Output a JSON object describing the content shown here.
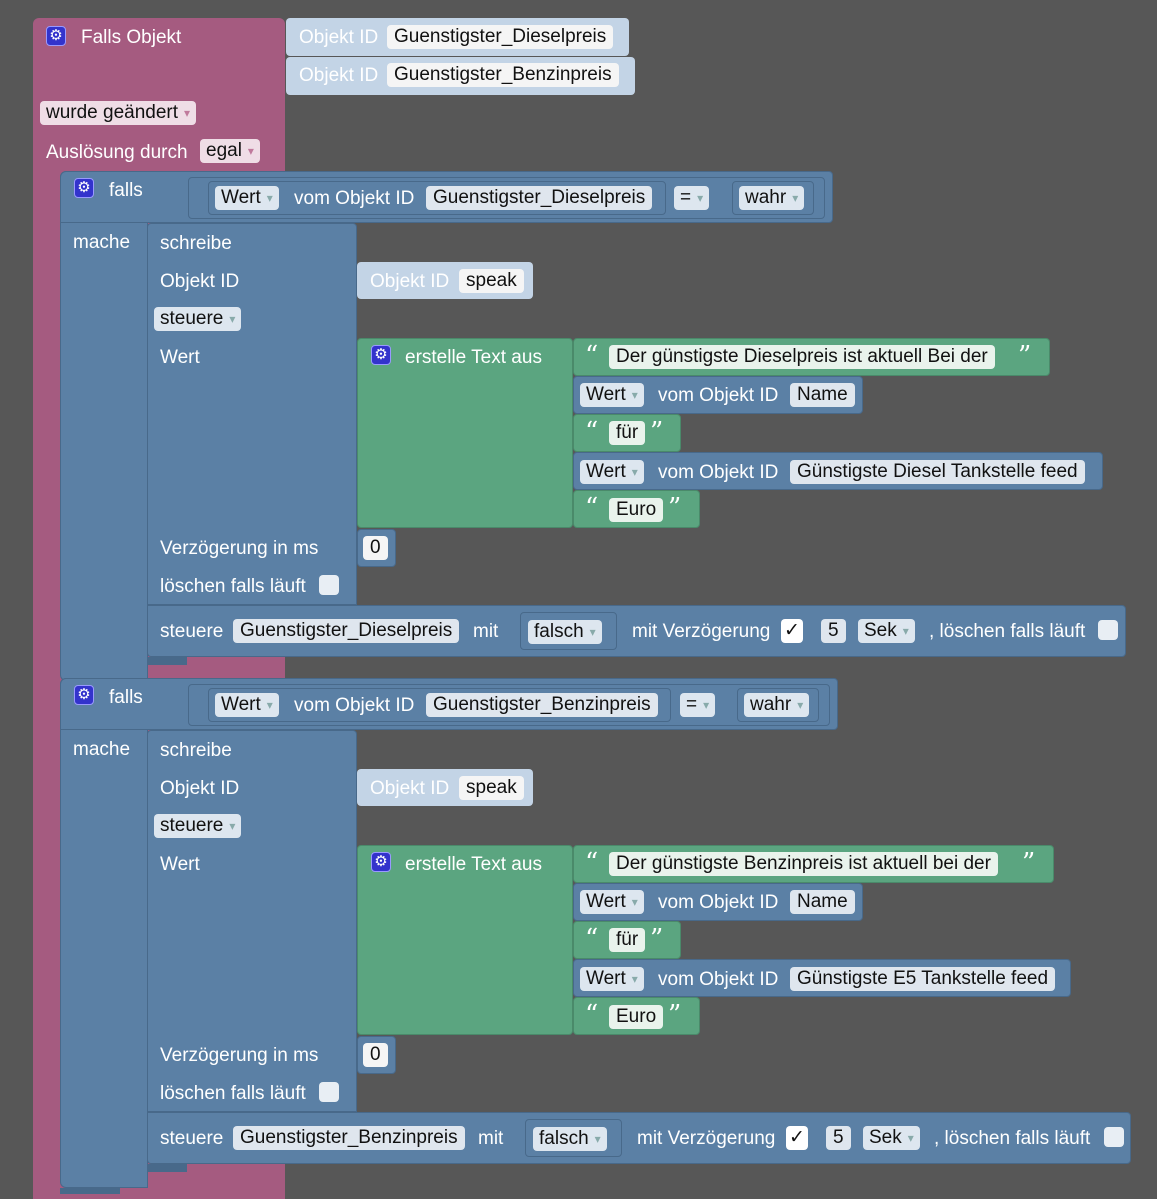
{
  "event": {
    "title": "Falls Objekt",
    "object_ids": [
      "Guenstigster_Dieselpreis",
      "Guenstigster_Benzinpreis"
    ],
    "object_id_label": "Objekt ID",
    "changed_dropdown": "wurde geändert",
    "trigger_label": "Auslösung durch",
    "trigger_value": "egal"
  },
  "labels": {
    "falls": "falls",
    "mache": "mache",
    "wert": "Wert",
    "vom_objekt_id": "vom Objekt ID",
    "eq": "=",
    "schreibe": "schreibe",
    "objekt_id": "Objekt ID",
    "steuere": "steuere",
    "erstelle_text": "erstelle Text aus",
    "verzoegerung": "Verzögerung in ms",
    "loeschen": "löschen falls läuft",
    "mit": "mit",
    "mit_verzoegerung": "mit Verzögerung",
    "loeschen_comma": ", löschen falls läuft",
    "open_quote": "“",
    "close_quote": "”"
  },
  "blocks": [
    {
      "cond_object": "Guenstigster_Dieselpreis",
      "cond_value": "wahr",
      "write_object": "speak",
      "text_1": "Der günstigste Dieselpreis ist aktuell Bei der",
      "name_object": "Name",
      "text_2": "für",
      "feed_object": "Günstigste Diesel Tankstelle feed",
      "text_3": "Euro",
      "delay_ms": "0",
      "reset_object": "Guenstigster_Dieselpreis",
      "reset_value": "falsch",
      "reset_delay_checked": "✓",
      "reset_delay": "5",
      "reset_unit": "Sek"
    },
    {
      "cond_object": "Guenstigster_Benzinpreis",
      "cond_value": "wahr",
      "write_object": "speak",
      "text_1": "Der günstigste Benzinpreis ist aktuell bei der",
      "name_object": "Name",
      "text_2": "für",
      "feed_object": "Günstigste E5 Tankstelle feed",
      "text_3": "Euro",
      "delay_ms": "0",
      "reset_object": "Guenstigster_Benzinpreis",
      "reset_value": "falsch",
      "reset_delay_checked": "✓",
      "reset_delay": "5",
      "reset_unit": "Sek"
    }
  ],
  "colors": {
    "event": "#a55b80",
    "logic": "#5b80a5",
    "text": "#5ba580",
    "object_id": "#c3d4e6",
    "background": "#575757"
  },
  "icons": [
    "gear-icon",
    "dropdown-arrow-icon",
    "checkbox-icon"
  ]
}
